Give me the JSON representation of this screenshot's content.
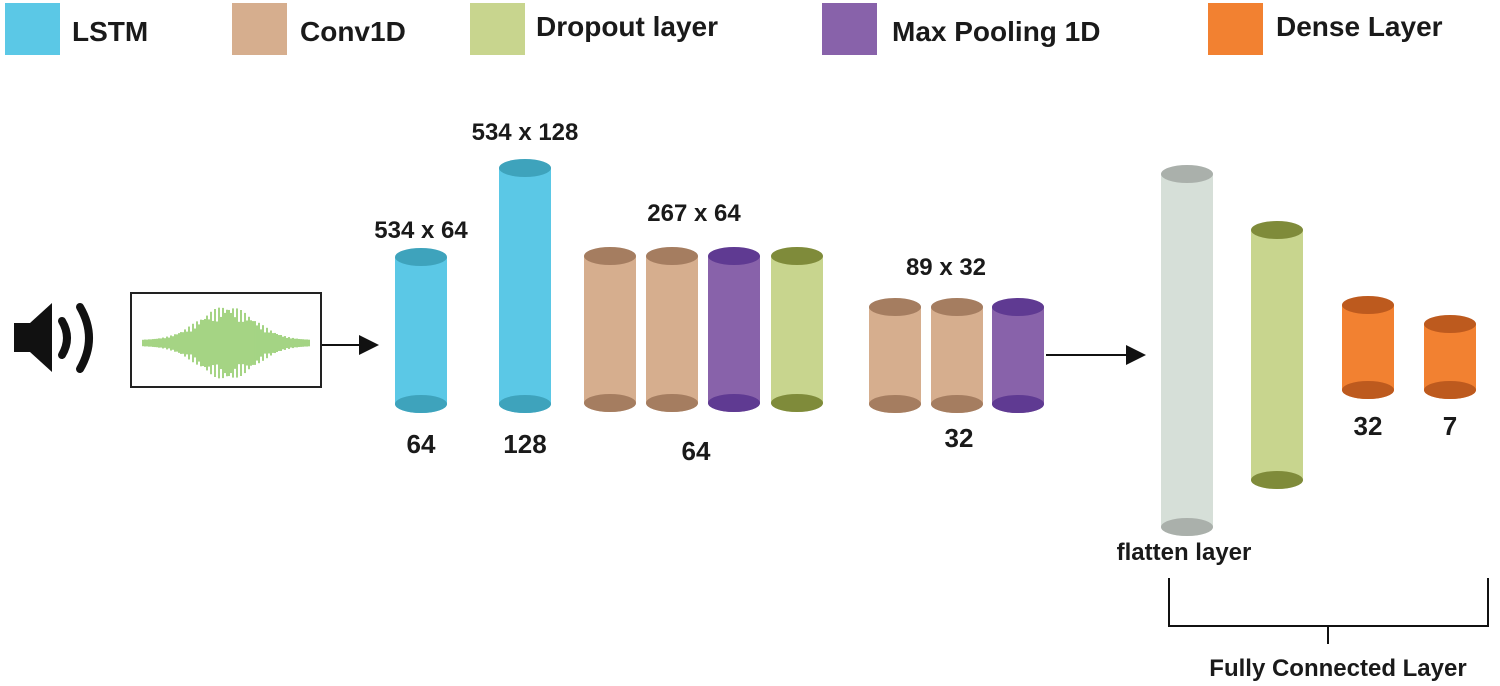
{
  "legend": [
    {
      "label": "LSTM",
      "color": "#5bc8e6",
      "dark": "#3ea3bc"
    },
    {
      "label": "Conv1D",
      "color": "#d6ae8e",
      "dark": "#a57d60"
    },
    {
      "label": "Dropout layer",
      "color": "#c8d58e",
      "dark": "#7f8b3a"
    },
    {
      "label": "Max Pooling 1D",
      "color": "#8862aa",
      "dark": "#5f3a92"
    },
    {
      "label": "Dense  Layer",
      "color": "#f28131",
      "dark": "#bd5a1e"
    }
  ],
  "input": {
    "speaker_icon": "speaker-icon",
    "waveform_icon": "audio-waveform-icon",
    "waveform_color": "#7ec24f"
  },
  "flatten_color": {
    "color": "#d6dfd8",
    "dark": "#aab0ab"
  },
  "labels": {
    "lstm1_top": "534 x 64",
    "lstm1_bottom": "64",
    "lstm2_top": "534 x 128",
    "lstm2_bottom": "128",
    "group1_top": "267 x 64",
    "group1_bottom": "64",
    "group2_top": "89 x 32",
    "group2_bottom": "32",
    "flatten": "flatten layer",
    "dense1": "32",
    "dense2": "7",
    "fully_connected": "Fully Connected Layer"
  }
}
